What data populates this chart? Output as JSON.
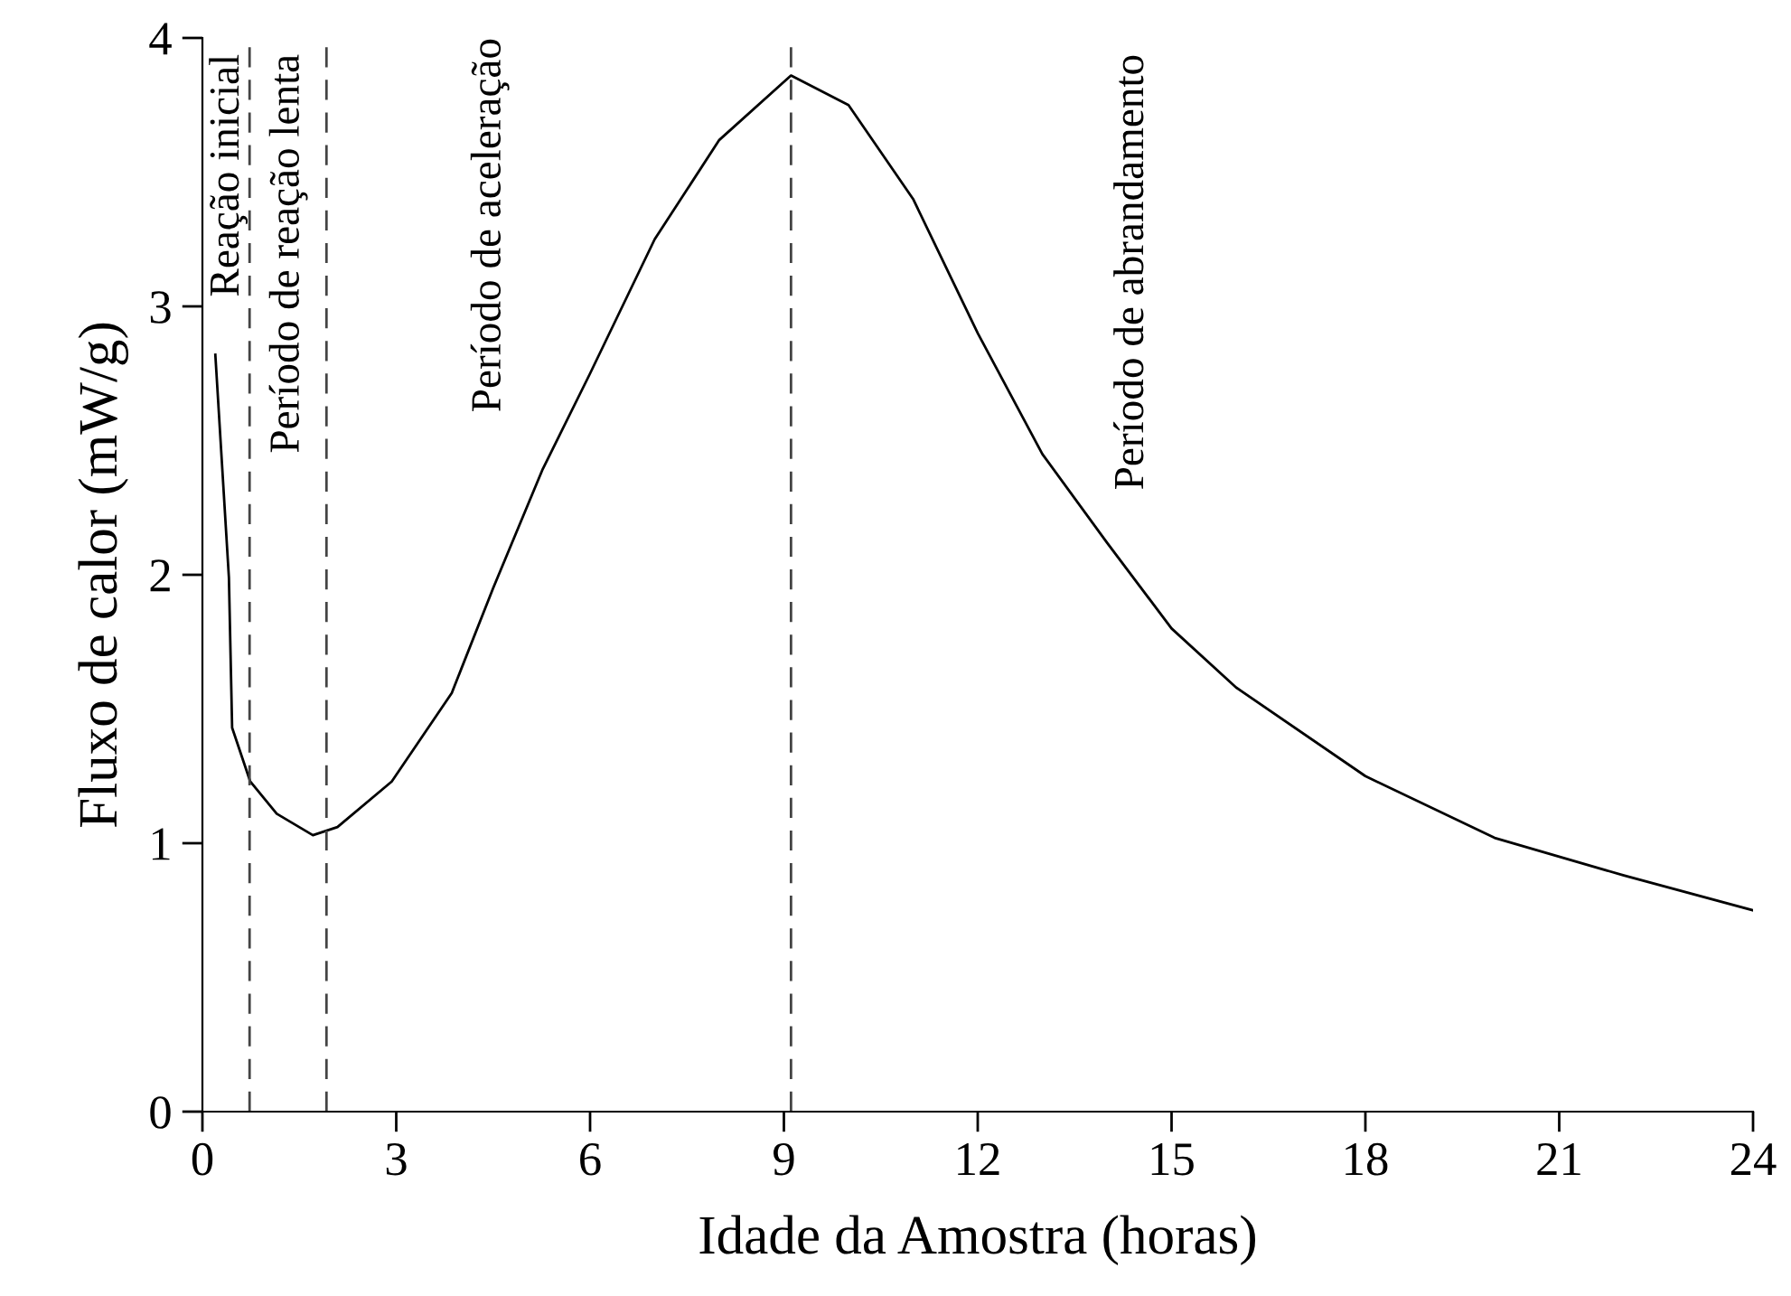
{
  "chart_data": {
    "type": "line",
    "xlabel": "Idade da Amostra (horas)",
    "ylabel": "Fluxo de calor (mW/g)",
    "x": [
      0.2,
      0.41,
      0.46,
      0.74,
      1.15,
      1.71,
      2.09,
      2.93,
      3.86,
      4.5,
      5.26,
      6,
      7,
      8,
      9.11,
      10,
      11,
      12,
      13,
      14,
      15,
      16,
      18,
      20,
      22,
      24
    ],
    "series": [
      {
        "color": "#000000",
        "values": [
          2.82,
          1.99,
          1.43,
          1.23,
          1.11,
          1.03,
          1.06,
          1.23,
          1.56,
          1.95,
          2.39,
          2.75,
          3.25,
          3.62,
          3.86,
          3.75,
          3.4,
          2.9,
          2.45,
          2.12,
          1.8,
          1.58,
          1.25,
          1.02,
          0.88,
          0.75
        ]
      }
    ],
    "xlim": [
      0,
      24
    ],
    "xticks": [
      0,
      3,
      6,
      9,
      12,
      15,
      18,
      21,
      24
    ],
    "ylim": [
      0,
      4
    ],
    "yticks": [
      0,
      1,
      2,
      3,
      4
    ],
    "ref_lines": [
      {
        "axis": "x",
        "value": 0.73,
        "line_style": "dashed"
      },
      {
        "axis": "x",
        "value": 1.92,
        "line_style": "dashed"
      },
      {
        "axis": "x",
        "value": 9.11,
        "line_style": "dashed"
      }
    ],
    "annotations": [
      "Reação inicial",
      "Período de reação lenta",
      "Período de aceleração",
      "Período de abrandamento"
    ],
    "grid": false,
    "legend": false,
    "marker": "none",
    "line_style": "solid"
  }
}
